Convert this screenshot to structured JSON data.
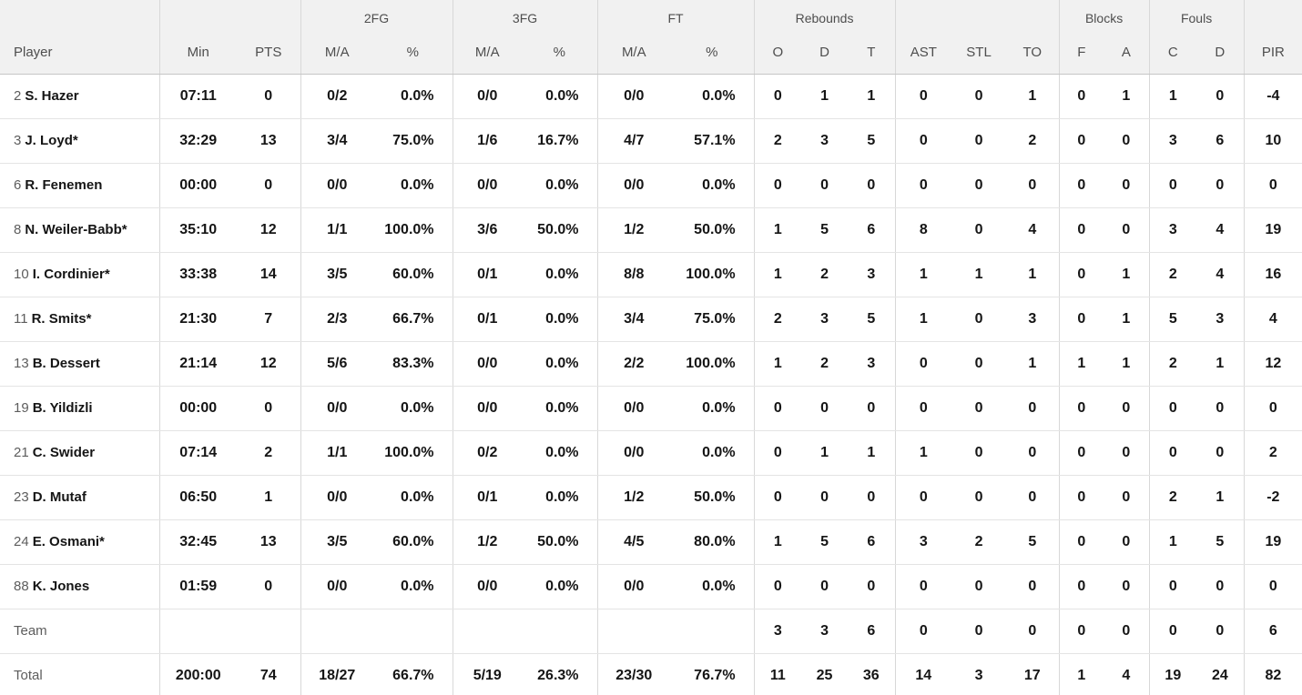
{
  "header": {
    "groups": {
      "fg2": "2FG",
      "fg3": "3FG",
      "ft": "FT",
      "rebounds": "Rebounds",
      "blocks": "Blocks",
      "fouls": "Fouls"
    },
    "cols": {
      "player": "Player",
      "min": "Min",
      "pts": "PTS",
      "ma": "M/A",
      "pct": "%",
      "reb_o": "O",
      "reb_d": "D",
      "reb_t": "T",
      "ast": "AST",
      "stl": "STL",
      "to": "TO",
      "blk_f": "F",
      "blk_a": "A",
      "foul_c": "C",
      "foul_d": "D",
      "pir": "PIR"
    }
  },
  "colors": {
    "header_bg": "#f1f1f1",
    "header_text": "#4e4e4e",
    "data_text": "#151515",
    "muted_text": "#5d5d5d",
    "row_border": "#e4e4e4",
    "group_border": "#d8d8d8"
  },
  "rows": [
    {
      "num": "2",
      "name": "S. Hazer",
      "min": "07:11",
      "pts": "0",
      "fg2": "0/2",
      "fg2p": "0.0%",
      "fg3": "0/0",
      "fg3p": "0.0%",
      "ft": "0/0",
      "ftp": "0.0%",
      "ro": "0",
      "rd": "1",
      "rt": "1",
      "ast": "0",
      "stl": "0",
      "to": "1",
      "bf": "0",
      "ba": "1",
      "fc": "1",
      "fd": "0",
      "pir": "-4"
    },
    {
      "num": "3",
      "name": "J. Loyd*",
      "min": "32:29",
      "pts": "13",
      "fg2": "3/4",
      "fg2p": "75.0%",
      "fg3": "1/6",
      "fg3p": "16.7%",
      "ft": "4/7",
      "ftp": "57.1%",
      "ro": "2",
      "rd": "3",
      "rt": "5",
      "ast": "0",
      "stl": "0",
      "to": "2",
      "bf": "0",
      "ba": "0",
      "fc": "3",
      "fd": "6",
      "pir": "10"
    },
    {
      "num": "6",
      "name": "R. Fenemen",
      "min": "00:00",
      "pts": "0",
      "fg2": "0/0",
      "fg2p": "0.0%",
      "fg3": "0/0",
      "fg3p": "0.0%",
      "ft": "0/0",
      "ftp": "0.0%",
      "ro": "0",
      "rd": "0",
      "rt": "0",
      "ast": "0",
      "stl": "0",
      "to": "0",
      "bf": "0",
      "ba": "0",
      "fc": "0",
      "fd": "0",
      "pir": "0"
    },
    {
      "num": "8",
      "name": "N. Weiler-Babb*",
      "min": "35:10",
      "pts": "12",
      "fg2": "1/1",
      "fg2p": "100.0%",
      "fg3": "3/6",
      "fg3p": "50.0%",
      "ft": "1/2",
      "ftp": "50.0%",
      "ro": "1",
      "rd": "5",
      "rt": "6",
      "ast": "8",
      "stl": "0",
      "to": "4",
      "bf": "0",
      "ba": "0",
      "fc": "3",
      "fd": "4",
      "pir": "19"
    },
    {
      "num": "10",
      "name": "I. Cordinier*",
      "min": "33:38",
      "pts": "14",
      "fg2": "3/5",
      "fg2p": "60.0%",
      "fg3": "0/1",
      "fg3p": "0.0%",
      "ft": "8/8",
      "ftp": "100.0%",
      "ro": "1",
      "rd": "2",
      "rt": "3",
      "ast": "1",
      "stl": "1",
      "to": "1",
      "bf": "0",
      "ba": "1",
      "fc": "2",
      "fd": "4",
      "pir": "16"
    },
    {
      "num": "11",
      "name": "R. Smits*",
      "min": "21:30",
      "pts": "7",
      "fg2": "2/3",
      "fg2p": "66.7%",
      "fg3": "0/1",
      "fg3p": "0.0%",
      "ft": "3/4",
      "ftp": "75.0%",
      "ro": "2",
      "rd": "3",
      "rt": "5",
      "ast": "1",
      "stl": "0",
      "to": "3",
      "bf": "0",
      "ba": "1",
      "fc": "5",
      "fd": "3",
      "pir": "4"
    },
    {
      "num": "13",
      "name": "B. Dessert",
      "min": "21:14",
      "pts": "12",
      "fg2": "5/6",
      "fg2p": "83.3%",
      "fg3": "0/0",
      "fg3p": "0.0%",
      "ft": "2/2",
      "ftp": "100.0%",
      "ro": "1",
      "rd": "2",
      "rt": "3",
      "ast": "0",
      "stl": "0",
      "to": "1",
      "bf": "1",
      "ba": "1",
      "fc": "2",
      "fd": "1",
      "pir": "12"
    },
    {
      "num": "19",
      "name": "B. Yildizli",
      "min": "00:00",
      "pts": "0",
      "fg2": "0/0",
      "fg2p": "0.0%",
      "fg3": "0/0",
      "fg3p": "0.0%",
      "ft": "0/0",
      "ftp": "0.0%",
      "ro": "0",
      "rd": "0",
      "rt": "0",
      "ast": "0",
      "stl": "0",
      "to": "0",
      "bf": "0",
      "ba": "0",
      "fc": "0",
      "fd": "0",
      "pir": "0"
    },
    {
      "num": "21",
      "name": "C. Swider",
      "min": "07:14",
      "pts": "2",
      "fg2": "1/1",
      "fg2p": "100.0%",
      "fg3": "0/2",
      "fg3p": "0.0%",
      "ft": "0/0",
      "ftp": "0.0%",
      "ro": "0",
      "rd": "1",
      "rt": "1",
      "ast": "1",
      "stl": "0",
      "to": "0",
      "bf": "0",
      "ba": "0",
      "fc": "0",
      "fd": "0",
      "pir": "2"
    },
    {
      "num": "23",
      "name": "D. Mutaf",
      "min": "06:50",
      "pts": "1",
      "fg2": "0/0",
      "fg2p": "0.0%",
      "fg3": "0/1",
      "fg3p": "0.0%",
      "ft": "1/2",
      "ftp": "50.0%",
      "ro": "0",
      "rd": "0",
      "rt": "0",
      "ast": "0",
      "stl": "0",
      "to": "0",
      "bf": "0",
      "ba": "0",
      "fc": "2",
      "fd": "1",
      "pir": "-2"
    },
    {
      "num": "24",
      "name": "E. Osmani*",
      "min": "32:45",
      "pts": "13",
      "fg2": "3/5",
      "fg2p": "60.0%",
      "fg3": "1/2",
      "fg3p": "50.0%",
      "ft": "4/5",
      "ftp": "80.0%",
      "ro": "1",
      "rd": "5",
      "rt": "6",
      "ast": "3",
      "stl": "2",
      "to": "5",
      "bf": "0",
      "ba": "0",
      "fc": "1",
      "fd": "5",
      "pir": "19"
    },
    {
      "num": "88",
      "name": "K. Jones",
      "min": "01:59",
      "pts": "0",
      "fg2": "0/0",
      "fg2p": "0.0%",
      "fg3": "0/0",
      "fg3p": "0.0%",
      "ft": "0/0",
      "ftp": "0.0%",
      "ro": "0",
      "rd": "0",
      "rt": "0",
      "ast": "0",
      "stl": "0",
      "to": "0",
      "bf": "0",
      "ba": "0",
      "fc": "0",
      "fd": "0",
      "pir": "0"
    },
    {
      "num": "",
      "name": "Team",
      "label_row": true,
      "min": "",
      "pts": "",
      "fg2": "",
      "fg2p": "",
      "fg3": "",
      "fg3p": "",
      "ft": "",
      "ftp": "",
      "ro": "3",
      "rd": "3",
      "rt": "6",
      "ast": "0",
      "stl": "0",
      "to": "0",
      "bf": "0",
      "ba": "0",
      "fc": "0",
      "fd": "0",
      "pir": "6"
    },
    {
      "num": "",
      "name": "Total",
      "label_row": true,
      "min": "200:00",
      "pts": "74",
      "fg2": "18/27",
      "fg2p": "66.7%",
      "fg3": "5/19",
      "fg3p": "26.3%",
      "ft": "23/30",
      "ftp": "76.7%",
      "ro": "11",
      "rd": "25",
      "rt": "36",
      "ast": "14",
      "stl": "3",
      "to": "17",
      "bf": "1",
      "ba": "4",
      "fc": "19",
      "fd": "24",
      "pir": "82"
    }
  ]
}
